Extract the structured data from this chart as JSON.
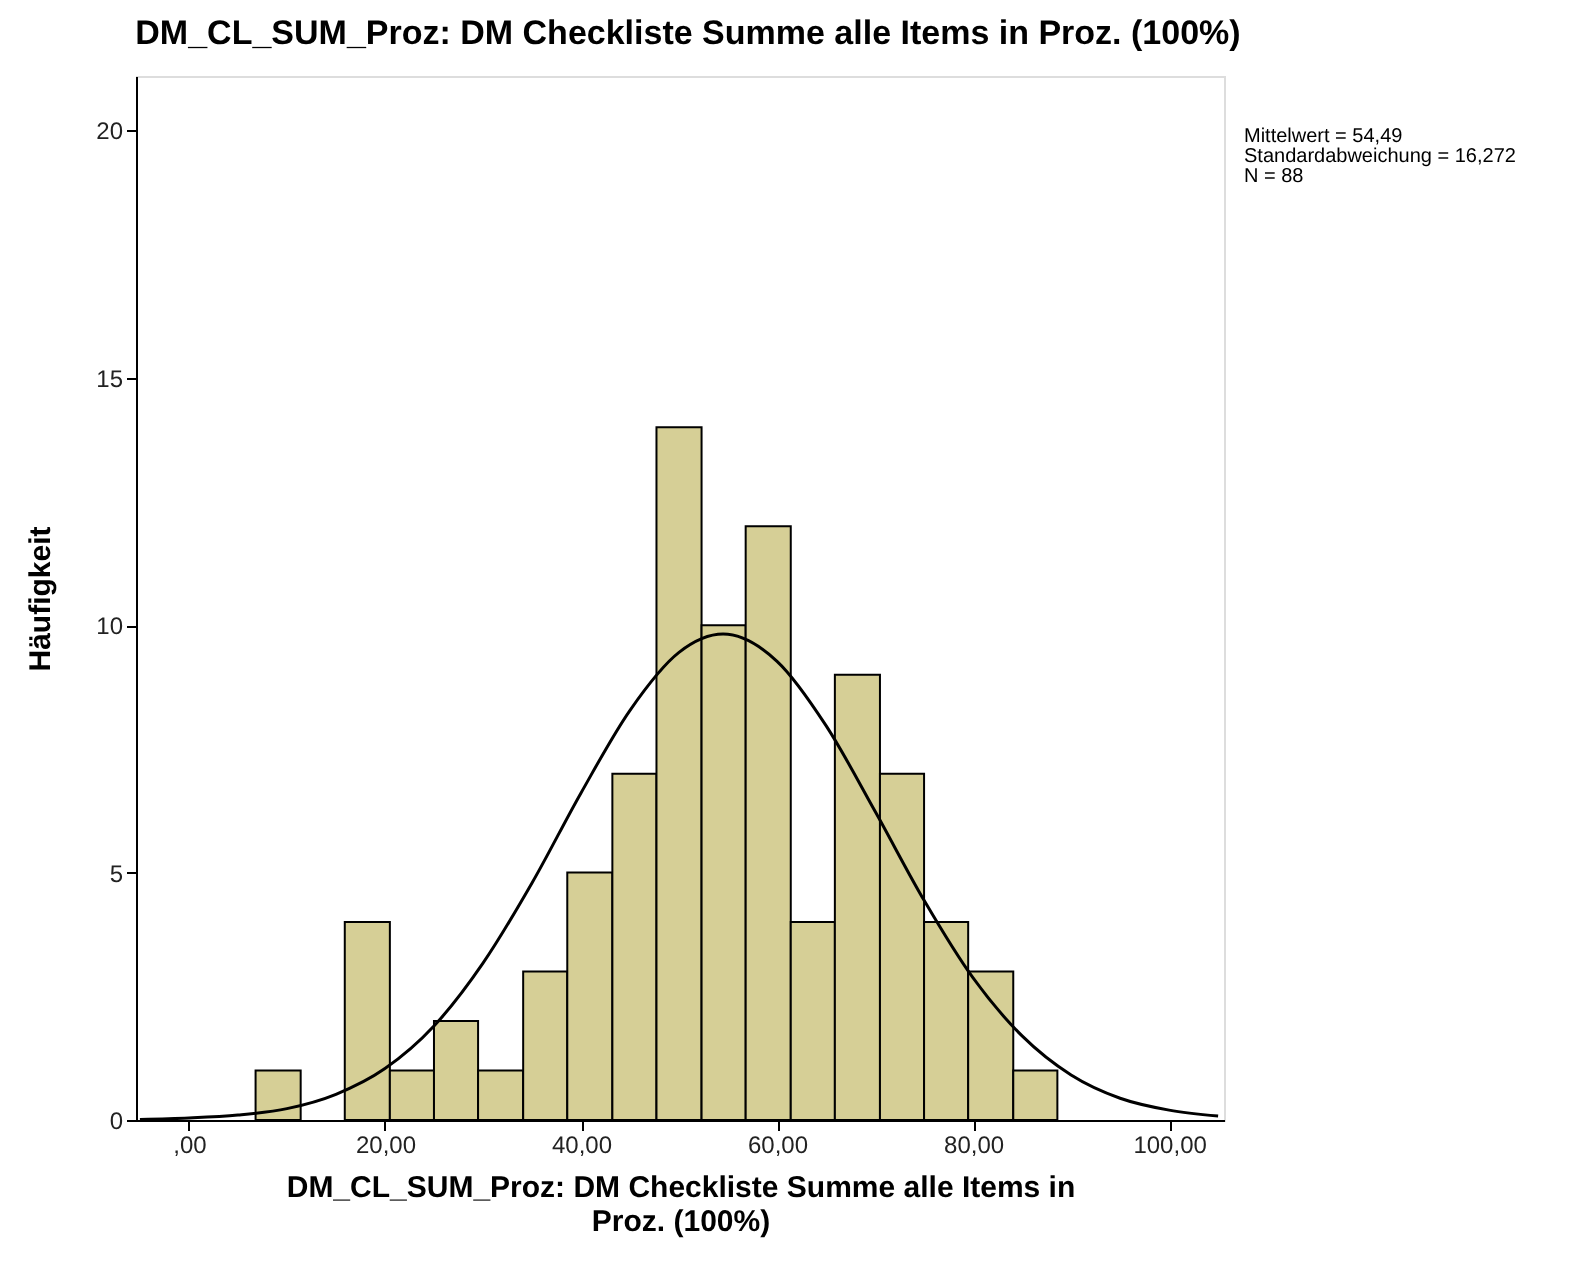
{
  "chart_data": {
    "type": "histogram",
    "title": "DM_CL_SUM_Proz: DM Checkliste Summe alle Items in Proz. (100%)",
    "xlabel": "DM_CL_SUM_Proz: DM Checkliste Summe alle Items in Proz. (100%)",
    "ylabel": "Häufigkeit",
    "bins": [
      6.8,
      11.4,
      15.9,
      20.5,
      25.0,
      29.5,
      34.1,
      38.6,
      43.2,
      47.7,
      52.3,
      56.8,
      61.4,
      65.9,
      70.5,
      75.0,
      79.5,
      84.1,
      88.6
    ],
    "values": [
      1,
      0,
      4,
      1,
      2,
      1,
      3,
      5,
      7,
      14,
      10,
      12,
      4,
      9,
      7,
      4,
      3,
      1
    ],
    "color": "#d6cf96",
    "series": [
      {
        "type": "line",
        "color": "#000000",
        "x": [
          -5,
          0,
          5,
          10,
          15,
          20,
          25,
          30,
          35,
          40,
          45,
          50,
          54.5,
          60,
          65,
          70,
          75,
          80,
          85,
          90,
          95,
          100,
          105
        ],
        "values": [
          0.01,
          0.04,
          0.1,
          0.23,
          0.52,
          1.04,
          1.9,
          3.17,
          4.79,
          6.61,
          8.28,
          9.45,
          9.82,
          9.27,
          7.97,
          6.24,
          4.44,
          2.87,
          1.7,
          0.91,
          0.44,
          0.2,
          0.08
        ]
      }
    ],
    "xlim": [
      -5.4,
      105.6
    ],
    "xticks": [
      {
        "value": 0,
        "label": ",00"
      },
      {
        "value": 20,
        "label": "20,00"
      },
      {
        "value": 40,
        "label": "40,00"
      },
      {
        "value": 60,
        "label": "60,00"
      },
      {
        "value": 80,
        "label": "80,00"
      },
      {
        "value": 100,
        "label": "100,00"
      }
    ],
    "ylim": [
      0,
      21.1
    ],
    "yticks": [
      0,
      5,
      10,
      15,
      20
    ],
    "grid": false,
    "annotations": [
      "Mittelwert = 54,49",
      "Standardabweichung = 16,272",
      "N = 88"
    ]
  }
}
